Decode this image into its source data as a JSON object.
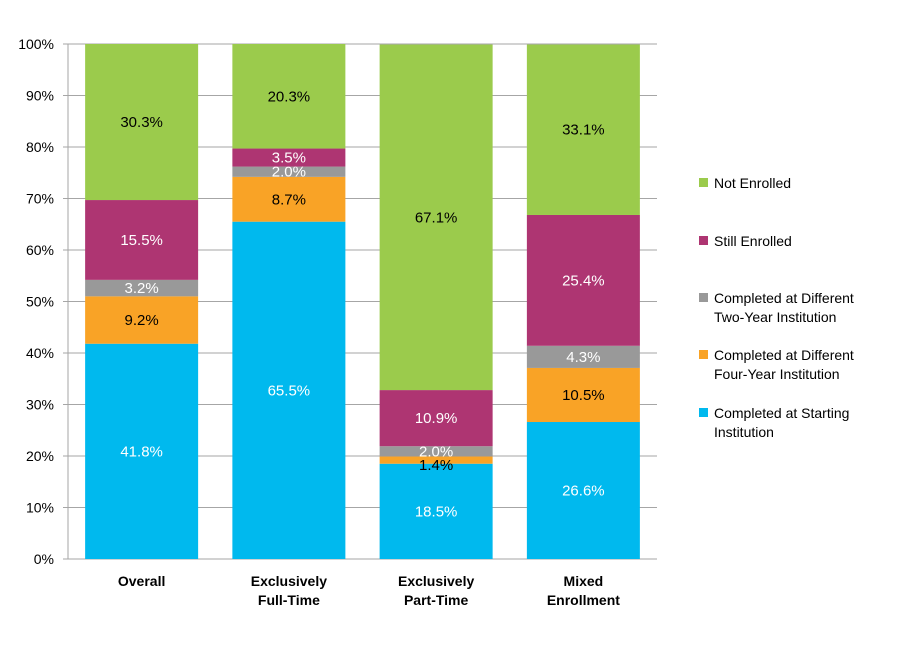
{
  "chart_data": {
    "type": "bar",
    "stacked": true,
    "title": "",
    "xlabel": "",
    "ylabel": "",
    "ylim": [
      0,
      100
    ],
    "y_ticks": [
      "0%",
      "10%",
      "20%",
      "30%",
      "40%",
      "50%",
      "60%",
      "70%",
      "80%",
      "90%",
      "100%"
    ],
    "grid": true,
    "legend_position": "right",
    "categories": [
      [
        "Overall"
      ],
      [
        "Exclusively",
        "Full-Time"
      ],
      [
        "Exclusively",
        "Part-Time"
      ],
      [
        "Mixed",
        "Enrollment"
      ]
    ],
    "series": [
      {
        "name": [
          "Completed at Starting",
          "Institution"
        ],
        "color": "#00B9EE",
        "label_color": "#ffffff",
        "values": [
          41.8,
          65.5,
          18.5,
          26.6
        ],
        "labels": [
          "41.8%",
          "65.5%",
          "18.5%",
          "26.6%"
        ]
      },
      {
        "name": [
          "Completed at Different",
          "Four-Year Institution"
        ],
        "color": "#F9A326",
        "label_color": "#000000",
        "values": [
          9.2,
          8.7,
          1.4,
          10.5
        ],
        "labels": [
          "9.2%",
          "8.7%",
          "1.4%",
          "10.5%"
        ]
      },
      {
        "name": [
          "Completed at Different",
          "Two-Year Institution"
        ],
        "color": "#999999",
        "label_color": "#ffffff",
        "values": [
          3.2,
          2.0,
          2.0,
          4.3
        ],
        "labels": [
          "3.2%",
          "2.0%",
          "2.0%",
          "4.3%"
        ]
      },
      {
        "name": [
          "Still Enrolled"
        ],
        "color": "#AE3572",
        "label_color": "#ffffff",
        "values": [
          15.5,
          3.5,
          10.9,
          25.4
        ],
        "labels": [
          "15.5%",
          "3.5%",
          "10.9%",
          "25.4%"
        ]
      },
      {
        "name": [
          "Not Enrolled"
        ],
        "color": "#9BCB4C",
        "label_color": "#000000",
        "values": [
          30.3,
          20.3,
          67.1,
          33.1
        ],
        "labels": [
          "30.3%",
          "20.3%",
          "67.1%",
          "33.1%"
        ]
      }
    ]
  }
}
